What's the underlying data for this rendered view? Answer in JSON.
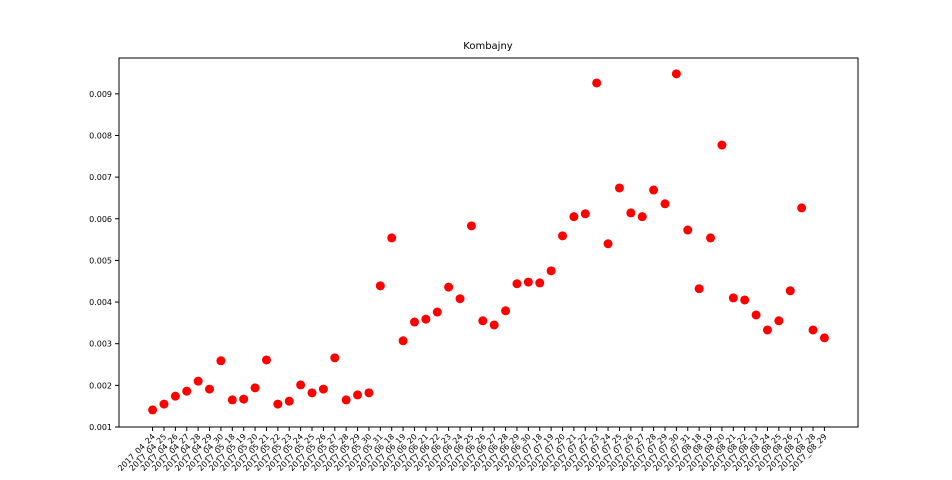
{
  "chart_data": {
    "type": "scatter",
    "title": "Kombajny",
    "categories": [
      "2017_04_24",
      "2017_04_25",
      "2017_04_26",
      "2017_04_27",
      "2017_04_28",
      "2017_04_29",
      "2017_04_30",
      "2017_05_18",
      "2017_05_19",
      "2017_05_20",
      "2017_05_21",
      "2017_05_22",
      "2017_05_23",
      "2017_05_24",
      "2017_05_25",
      "2017_05_26",
      "2017_05_27",
      "2017_05_28",
      "2017_05_29",
      "2017_05_30",
      "2017_05_31",
      "2017_06_18",
      "2017_06_19",
      "2017_06_20",
      "2017_06_21",
      "2017_06_22",
      "2017_06_23",
      "2017_06_24",
      "2017_06_25",
      "2017_06_26",
      "2017_06_27",
      "2017_06_28",
      "2017_06_29",
      "2017_06_30",
      "2017_07_18",
      "2017_07_19",
      "2017_07_20",
      "2017_07_21",
      "2017_07_22",
      "2017_07_23",
      "2017_07_24",
      "2017_07_25",
      "2017_07_26",
      "2017_07_27",
      "2017_07_28",
      "2017_07_29",
      "2017_07_30",
      "2017_07_31",
      "2017_08_18",
      "2017_08_19",
      "2017_08_20",
      "2017_08_21",
      "2017_08_22",
      "2017_08_23",
      "2017_08_24",
      "2017_08_25",
      "2017_08_26",
      "2017_08_27",
      "2017_08_28",
      "2017_08_29"
    ],
    "values": [
      0.00141,
      0.00155,
      0.00174,
      0.00186,
      0.0021,
      0.00191,
      0.00259,
      0.00165,
      0.00167,
      0.00194,
      0.00261,
      0.00155,
      0.00162,
      0.00201,
      0.00182,
      0.00191,
      0.00266,
      0.00165,
      0.00177,
      0.00182,
      0.00439,
      0.00554,
      0.00307,
      0.00352,
      0.00359,
      0.00376,
      0.00436,
      0.00408,
      0.00583,
      0.00355,
      0.00345,
      0.00379,
      0.00444,
      0.00448,
      0.00446,
      0.00475,
      0.00559,
      0.00605,
      0.00612,
      0.00926,
      0.0054,
      0.00674,
      0.00614,
      0.00605,
      0.00669,
      0.00636,
      0.00948,
      0.00573,
      0.00432,
      0.00554,
      0.00777,
      0.0041,
      0.00405,
      0.00369,
      0.00333,
      0.00355,
      0.00427,
      0.00626,
      0.00333,
      0.00314
    ],
    "color": "#ff0000",
    "ylim": [
      0.001,
      0.00986
    ],
    "yticks": [
      0.001,
      0.002,
      0.003,
      0.004,
      0.005,
      0.006,
      0.007,
      0.008,
      0.009
    ]
  }
}
